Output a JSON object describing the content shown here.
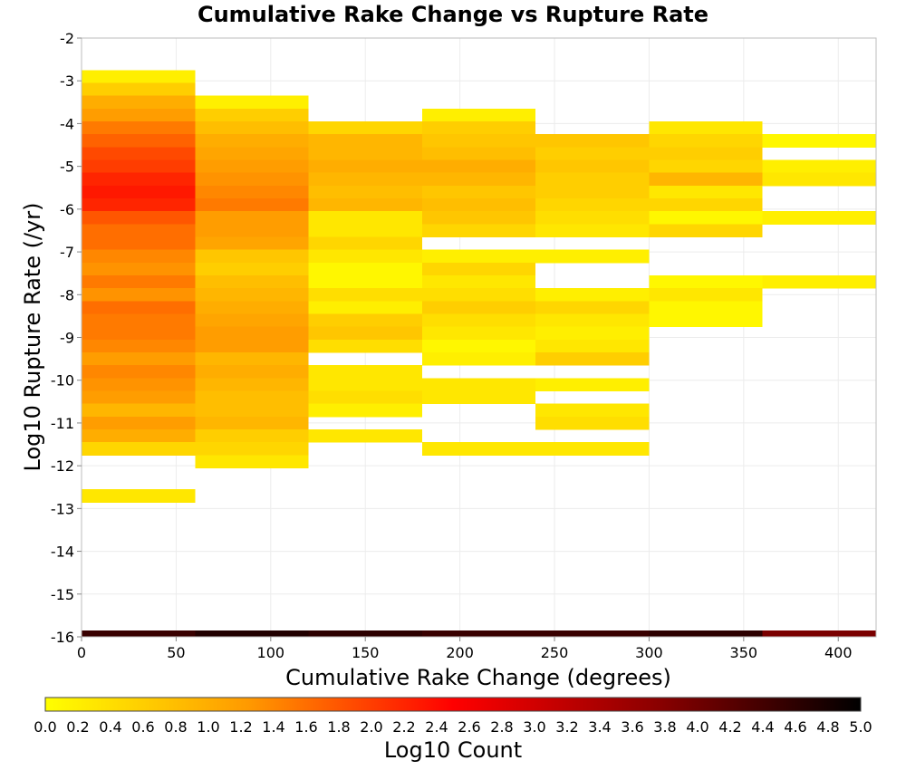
{
  "chart_data": {
    "type": "heatmap",
    "title": "Cumulative Rake Change vs Rupture Rate",
    "xlabel": "Cumulative Rake Change (degrees)",
    "ylabel": "Log10 Rupture Rate (/yr)",
    "xlim": [
      0,
      420
    ],
    "ylim": [
      -16,
      -2
    ],
    "x_ticks": [
      "0",
      "50",
      "100",
      "150",
      "200",
      "250",
      "300",
      "350",
      "400"
    ],
    "y_ticks": [
      "-2",
      "-3",
      "-4",
      "-5",
      "-6",
      "-7",
      "-8",
      "-9",
      "-10",
      "-11",
      "-12",
      "-13",
      "-14",
      "-15",
      "-16"
    ],
    "grid": true,
    "x_bin_width": 60,
    "y_bin_height": 0.3,
    "colorbar": {
      "label": "Log10 Count",
      "range": [
        0.0,
        5.0
      ],
      "ticks": [
        "0.0",
        "0.2",
        "0.4",
        "0.6",
        "0.8",
        "1.0",
        "1.2",
        "1.4",
        "1.6",
        "1.8",
        "2.0",
        "2.2",
        "2.4",
        "2.6",
        "2.8",
        "3.0",
        "3.2",
        "3.4",
        "3.6",
        "3.8",
        "4.0",
        "4.2",
        "4.4",
        "4.6",
        "4.8",
        "5.0"
      ],
      "colors": [
        "#ffff00",
        "#ff9900",
        "#ff0000",
        "#8b0000",
        "#000000"
      ]
    },
    "columns": [
      {
        "x_start": 0,
        "cells": [
          {
            "y": -2.9,
            "v": 0.2
          },
          {
            "y": -3.2,
            "v": 0.6
          },
          {
            "y": -3.5,
            "v": 1.0
          },
          {
            "y": -3.8,
            "v": 1.2
          },
          {
            "y": -4.1,
            "v": 1.5
          },
          {
            "y": -4.4,
            "v": 1.7
          },
          {
            "y": -4.7,
            "v": 1.9
          },
          {
            "y": -5.0,
            "v": 2.0
          },
          {
            "y": -5.3,
            "v": 2.2
          },
          {
            "y": -5.6,
            "v": 2.3
          },
          {
            "y": -5.9,
            "v": 2.2
          },
          {
            "y": -6.2,
            "v": 1.8
          },
          {
            "y": -6.5,
            "v": 1.6
          },
          {
            "y": -6.8,
            "v": 1.6
          },
          {
            "y": -7.1,
            "v": 1.4
          },
          {
            "y": -7.4,
            "v": 1.3
          },
          {
            "y": -7.7,
            "v": 1.5
          },
          {
            "y": -8.0,
            "v": 1.3
          },
          {
            "y": -8.3,
            "v": 1.6
          },
          {
            "y": -8.6,
            "v": 1.5
          },
          {
            "y": -8.9,
            "v": 1.5
          },
          {
            "y": -9.2,
            "v": 1.4
          },
          {
            "y": -9.5,
            "v": 1.2
          },
          {
            "y": -9.8,
            "v": 1.4
          },
          {
            "y": -10.1,
            "v": 1.3
          },
          {
            "y": -10.4,
            "v": 1.2
          },
          {
            "y": -10.7,
            "v": 0.9
          },
          {
            "y": -11.0,
            "v": 1.2
          },
          {
            "y": -11.3,
            "v": 1.0
          },
          {
            "y": -11.6,
            "v": 0.5
          },
          {
            "y": -12.7,
            "v": 0.3
          },
          {
            "y": -16.0,
            "v": 4.5
          }
        ]
      },
      {
        "x_start": 60,
        "cells": [
          {
            "y": -3.5,
            "v": 0.2
          },
          {
            "y": -3.8,
            "v": 0.6
          },
          {
            "y": -4.1,
            "v": 0.8
          },
          {
            "y": -4.4,
            "v": 1.0
          },
          {
            "y": -4.7,
            "v": 1.1
          },
          {
            "y": -5.0,
            "v": 1.2
          },
          {
            "y": -5.3,
            "v": 1.3
          },
          {
            "y": -5.6,
            "v": 1.4
          },
          {
            "y": -5.9,
            "v": 1.5
          },
          {
            "y": -6.2,
            "v": 1.2
          },
          {
            "y": -6.5,
            "v": 1.2
          },
          {
            "y": -6.8,
            "v": 1.1
          },
          {
            "y": -7.1,
            "v": 0.7
          },
          {
            "y": -7.4,
            "v": 0.6
          },
          {
            "y": -7.7,
            "v": 0.8
          },
          {
            "y": -8.0,
            "v": 0.9
          },
          {
            "y": -8.3,
            "v": 1.0
          },
          {
            "y": -8.6,
            "v": 1.1
          },
          {
            "y": -8.9,
            "v": 1.2
          },
          {
            "y": -9.2,
            "v": 1.2
          },
          {
            "y": -9.5,
            "v": 0.9
          },
          {
            "y": -9.8,
            "v": 1.0
          },
          {
            "y": -10.1,
            "v": 0.9
          },
          {
            "y": -10.4,
            "v": 0.8
          },
          {
            "y": -10.7,
            "v": 0.8
          },
          {
            "y": -11.0,
            "v": 0.9
          },
          {
            "y": -11.3,
            "v": 0.6
          },
          {
            "y": -11.6,
            "v": 0.5
          },
          {
            "y": -11.9,
            "v": 0.3
          },
          {
            "y": -16.0,
            "v": 4.7
          }
        ]
      },
      {
        "x_start": 120,
        "cells": [
          {
            "y": -4.1,
            "v": 0.5
          },
          {
            "y": -4.4,
            "v": 0.9
          },
          {
            "y": -4.7,
            "v": 0.9
          },
          {
            "y": -5.0,
            "v": 1.0
          },
          {
            "y": -5.3,
            "v": 0.9
          },
          {
            "y": -5.6,
            "v": 0.8
          },
          {
            "y": -5.9,
            "v": 0.9
          },
          {
            "y": -6.2,
            "v": 0.3
          },
          {
            "y": -6.5,
            "v": 0.3
          },
          {
            "y": -6.8,
            "v": 0.5
          },
          {
            "y": -7.1,
            "v": 0.3
          },
          {
            "y": -7.4,
            "v": 0.1
          },
          {
            "y": -7.7,
            "v": 0.1
          },
          {
            "y": -8.0,
            "v": 0.4
          },
          {
            "y": -8.3,
            "v": 0.2
          },
          {
            "y": -8.6,
            "v": 0.6
          },
          {
            "y": -8.9,
            "v": 0.7
          },
          {
            "y": -9.2,
            "v": 0.4
          },
          {
            "y": -9.8,
            "v": 0.3
          },
          {
            "y": -10.1,
            "v": 0.3
          },
          {
            "y": -10.4,
            "v": 0.4
          },
          {
            "y": -10.7,
            "v": 0.2
          },
          {
            "y": -11.3,
            "v": 0.3
          },
          {
            "y": -16.0,
            "v": 4.6
          }
        ]
      },
      {
        "x_start": 180,
        "cells": [
          {
            "y": -3.8,
            "v": 0.2
          },
          {
            "y": -4.1,
            "v": 0.6
          },
          {
            "y": -4.4,
            "v": 0.7
          },
          {
            "y": -4.7,
            "v": 0.8
          },
          {
            "y": -5.0,
            "v": 1.0
          },
          {
            "y": -5.3,
            "v": 0.9
          },
          {
            "y": -5.6,
            "v": 0.7
          },
          {
            "y": -5.9,
            "v": 0.8
          },
          {
            "y": -6.2,
            "v": 0.7
          },
          {
            "y": -6.5,
            "v": 0.5
          },
          {
            "y": -7.1,
            "v": 0.2
          },
          {
            "y": -7.4,
            "v": 0.5
          },
          {
            "y": -7.7,
            "v": 0.3
          },
          {
            "y": -8.0,
            "v": 0.4
          },
          {
            "y": -8.3,
            "v": 0.6
          },
          {
            "y": -8.6,
            "v": 0.4
          },
          {
            "y": -8.9,
            "v": 0.3
          },
          {
            "y": -9.2,
            "v": 0.1
          },
          {
            "y": -9.5,
            "v": 0.2
          },
          {
            "y": -10.1,
            "v": 0.3
          },
          {
            "y": -10.4,
            "v": 0.3
          },
          {
            "y": -11.6,
            "v": 0.3
          },
          {
            "y": -16.0,
            "v": 4.5
          }
        ]
      },
      {
        "x_start": 240,
        "cells": [
          {
            "y": -4.4,
            "v": 0.7
          },
          {
            "y": -4.7,
            "v": 0.6
          },
          {
            "y": -5.0,
            "v": 0.7
          },
          {
            "y": -5.3,
            "v": 0.6
          },
          {
            "y": -5.6,
            "v": 0.6
          },
          {
            "y": -5.9,
            "v": 0.5
          },
          {
            "y": -6.2,
            "v": 0.4
          },
          {
            "y": -6.5,
            "v": 0.3
          },
          {
            "y": -7.1,
            "v": 0.2
          },
          {
            "y": -8.0,
            "v": 0.2
          },
          {
            "y": -8.3,
            "v": 0.5
          },
          {
            "y": -8.6,
            "v": 0.3
          },
          {
            "y": -8.9,
            "v": 0.2
          },
          {
            "y": -9.2,
            "v": 0.3
          },
          {
            "y": -9.5,
            "v": 0.6
          },
          {
            "y": -10.1,
            "v": 0.2
          },
          {
            "y": -10.7,
            "v": 0.3
          },
          {
            "y": -11.0,
            "v": 0.4
          },
          {
            "y": -11.6,
            "v": 0.3
          },
          {
            "y": -16.0,
            "v": 4.5
          }
        ]
      },
      {
        "x_start": 300,
        "cells": [
          {
            "y": -4.1,
            "v": 0.3
          },
          {
            "y": -4.4,
            "v": 0.5
          },
          {
            "y": -4.7,
            "v": 0.6
          },
          {
            "y": -5.0,
            "v": 0.5
          },
          {
            "y": -5.3,
            "v": 0.9
          },
          {
            "y": -5.6,
            "v": 0.3
          },
          {
            "y": -5.9,
            "v": 0.5
          },
          {
            "y": -6.2,
            "v": 0.1
          },
          {
            "y": -6.5,
            "v": 0.5
          },
          {
            "y": -7.7,
            "v": 0.1
          },
          {
            "y": -8.0,
            "v": 0.3
          },
          {
            "y": -8.3,
            "v": 0.1
          },
          {
            "y": -8.6,
            "v": 0.1
          },
          {
            "y": -16.0,
            "v": 4.6
          }
        ]
      },
      {
        "x_start": 360,
        "cells": [
          {
            "y": -4.4,
            "v": 0.1
          },
          {
            "y": -5.0,
            "v": 0.2
          },
          {
            "y": -5.3,
            "v": 0.3
          },
          {
            "y": -6.2,
            "v": 0.2
          },
          {
            "y": -7.7,
            "v": 0.2
          },
          {
            "y": -16.0,
            "v": 3.9
          }
        ]
      }
    ]
  }
}
